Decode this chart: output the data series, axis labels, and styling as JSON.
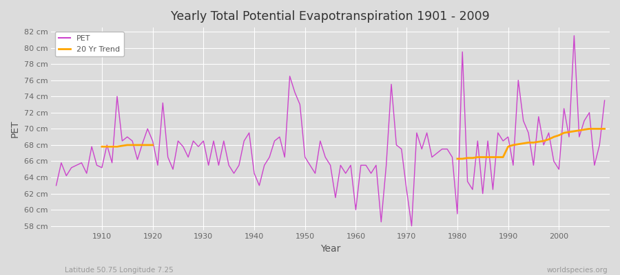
{
  "title": "Yearly Total Potential Evapotranspiration 1901 - 2009",
  "xlabel": "Year",
  "ylabel": "PET",
  "subtitle_left": "Latitude 50.75 Longitude 7.25",
  "subtitle_right": "worldspecies.org",
  "pet_color": "#cc44cc",
  "trend_color": "#ffa500",
  "fig_bg_color": "#dcdcdc",
  "plot_bg_color": "#dcdcdc",
  "grid_color": "#ffffff",
  "ylim": [
    57.5,
    82.5
  ],
  "years": [
    1901,
    1902,
    1903,
    1904,
    1905,
    1906,
    1907,
    1908,
    1909,
    1910,
    1911,
    1912,
    1913,
    1914,
    1915,
    1916,
    1917,
    1918,
    1919,
    1920,
    1921,
    1922,
    1923,
    1924,
    1925,
    1926,
    1927,
    1928,
    1929,
    1930,
    1931,
    1932,
    1933,
    1934,
    1935,
    1936,
    1937,
    1938,
    1939,
    1940,
    1941,
    1942,
    1943,
    1944,
    1945,
    1946,
    1947,
    1948,
    1949,
    1950,
    1951,
    1952,
    1953,
    1954,
    1955,
    1956,
    1957,
    1958,
    1959,
    1960,
    1961,
    1962,
    1963,
    1964,
    1965,
    1966,
    1967,
    1968,
    1969,
    1970,
    1971,
    1972,
    1973,
    1974,
    1975,
    1976,
    1977,
    1978,
    1979,
    1980,
    1981,
    1982,
    1983,
    1984,
    1985,
    1986,
    1987,
    1988,
    1989,
    1990,
    1991,
    1992,
    1993,
    1994,
    1995,
    1996,
    1997,
    1998,
    1999,
    2000,
    2001,
    2002,
    2003,
    2004,
    2005,
    2006,
    2007,
    2008,
    2009
  ],
  "pet_values": [
    63.0,
    65.8,
    64.2,
    65.2,
    65.5,
    65.8,
    64.5,
    67.8,
    65.5,
    65.2,
    68.0,
    65.8,
    74.0,
    68.5,
    69.0,
    68.5,
    66.2,
    68.2,
    70.0,
    68.5,
    65.5,
    73.2,
    66.5,
    65.0,
    68.5,
    67.8,
    66.5,
    68.5,
    67.8,
    68.5,
    65.5,
    68.5,
    65.5,
    68.5,
    65.5,
    64.5,
    65.5,
    68.5,
    69.5,
    64.5,
    63.0,
    65.5,
    66.5,
    68.5,
    69.0,
    66.5,
    76.5,
    74.5,
    73.0,
    66.5,
    65.5,
    64.5,
    68.5,
    66.5,
    65.5,
    61.5,
    65.5,
    64.5,
    65.5,
    60.0,
    65.5,
    65.5,
    64.5,
    65.5,
    58.5,
    65.5,
    75.5,
    68.0,
    67.5,
    62.5,
    58.0,
    69.5,
    67.5,
    69.5,
    66.5,
    67.0,
    67.5,
    67.5,
    66.5,
    59.5,
    79.5,
    63.5,
    62.5,
    68.5,
    62.0,
    68.5,
    62.5,
    69.5,
    68.5,
    69.0,
    65.5,
    76.0,
    71.0,
    69.5,
    65.5,
    71.5,
    68.0,
    69.5,
    66.0,
    65.0,
    72.5,
    69.0,
    81.5,
    69.0,
    71.0,
    72.0,
    65.5,
    68.0,
    73.5
  ],
  "trend_seg1_years": [
    1910,
    1911,
    1912,
    1913,
    1914,
    1915,
    1916,
    1917,
    1918,
    1919,
    1920
  ],
  "trend_seg1_values": [
    67.8,
    67.8,
    67.8,
    67.8,
    67.9,
    68.0,
    68.0,
    68.0,
    68.0,
    68.0,
    68.0
  ],
  "trend_seg2_years": [
    1980,
    1981,
    1982,
    1983,
    1984,
    1985,
    1986,
    1987,
    1988,
    1989,
    1990,
    1991,
    1992,
    1993,
    1994,
    1995,
    1996,
    1997,
    1998,
    1999,
    2000,
    2001,
    2002,
    2003,
    2004,
    2005,
    2006,
    2007,
    2008,
    2009
  ],
  "trend_seg2_values": [
    66.3,
    66.3,
    66.4,
    66.4,
    66.5,
    66.5,
    66.5,
    66.5,
    66.5,
    66.5,
    67.8,
    68.0,
    68.1,
    68.2,
    68.3,
    68.3,
    68.4,
    68.5,
    68.7,
    69.0,
    69.2,
    69.5,
    69.6,
    69.7,
    69.8,
    69.9,
    70.0,
    70.0,
    70.0,
    70.0
  ],
  "yticks": [
    58,
    60,
    62,
    64,
    66,
    68,
    70,
    72,
    74,
    76,
    78,
    80,
    82
  ],
  "xticks": [
    1910,
    1920,
    1930,
    1940,
    1950,
    1960,
    1970,
    1980,
    1990,
    2000
  ]
}
